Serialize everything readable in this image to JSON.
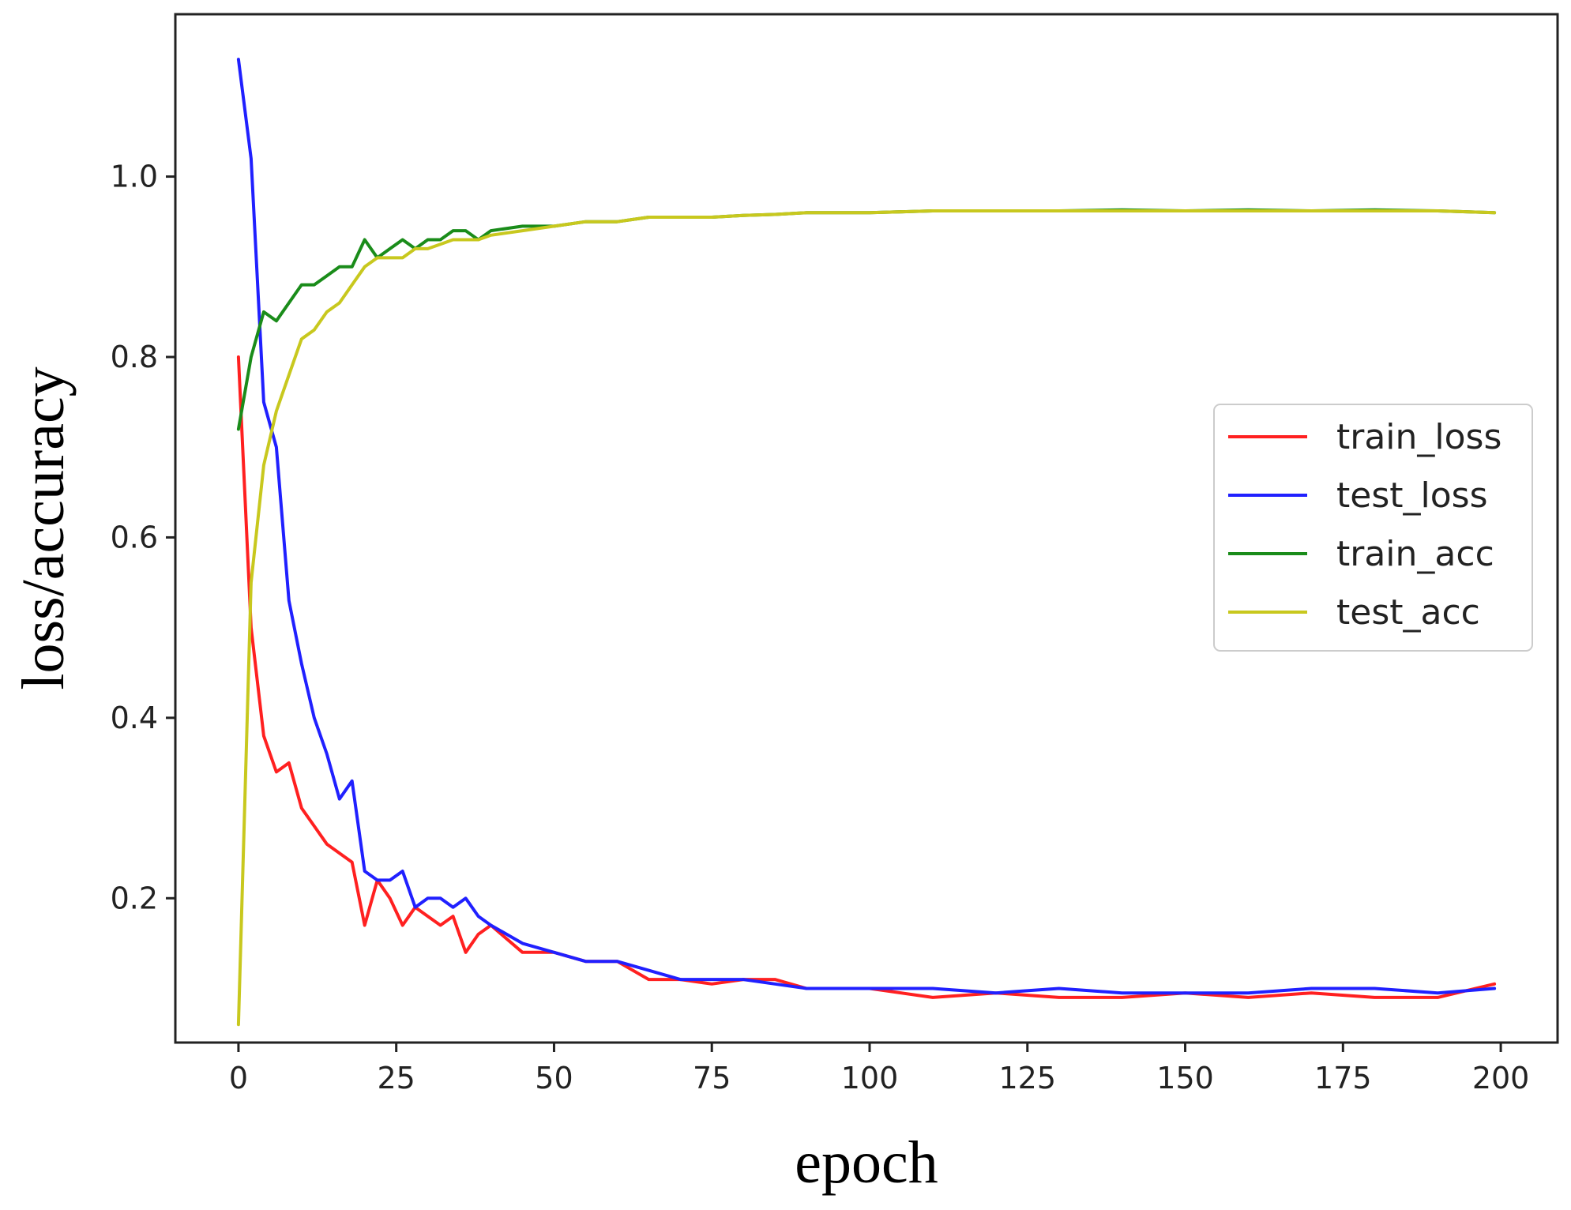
{
  "chart_data": {
    "type": "line",
    "title": "",
    "xlabel": "epoch",
    "ylabel": "loss/accuracy",
    "xlim": [
      -10,
      209
    ],
    "ylim": [
      0.04,
      1.18
    ],
    "x_ticks": [
      0,
      25,
      50,
      75,
      100,
      125,
      150,
      175,
      200
    ],
    "y_ticks": [
      0.2,
      0.4,
      0.6,
      0.8,
      1.0
    ],
    "y_tick_labels": [
      "0.2",
      "0.4",
      "0.6",
      "0.8",
      "1.0"
    ],
    "grid": false,
    "legend_position": "center-right",
    "x": [
      0,
      2,
      4,
      6,
      8,
      10,
      12,
      14,
      16,
      18,
      20,
      22,
      24,
      26,
      28,
      30,
      32,
      34,
      36,
      38,
      40,
      45,
      50,
      55,
      60,
      65,
      70,
      75,
      80,
      85,
      90,
      95,
      100,
      110,
      120,
      130,
      140,
      150,
      160,
      170,
      180,
      190,
      199
    ],
    "series": [
      {
        "name": "train_loss",
        "color": "#ff2020",
        "values": [
          0.8,
          0.5,
          0.38,
          0.34,
          0.35,
          0.3,
          0.28,
          0.26,
          0.25,
          0.24,
          0.17,
          0.22,
          0.2,
          0.17,
          0.19,
          0.18,
          0.17,
          0.18,
          0.14,
          0.16,
          0.17,
          0.14,
          0.14,
          0.13,
          0.13,
          0.11,
          0.11,
          0.105,
          0.11,
          0.11,
          0.1,
          0.1,
          0.1,
          0.09,
          0.095,
          0.09,
          0.09,
          0.095,
          0.09,
          0.095,
          0.09,
          0.09,
          0.105
        ]
      },
      {
        "name": "test_loss",
        "color": "#2020ff",
        "values": [
          1.13,
          1.02,
          0.75,
          0.7,
          0.53,
          0.46,
          0.4,
          0.36,
          0.31,
          0.33,
          0.23,
          0.22,
          0.22,
          0.23,
          0.19,
          0.2,
          0.2,
          0.19,
          0.2,
          0.18,
          0.17,
          0.15,
          0.14,
          0.13,
          0.13,
          0.12,
          0.11,
          0.11,
          0.11,
          0.105,
          0.1,
          0.1,
          0.1,
          0.1,
          0.095,
          0.1,
          0.095,
          0.095,
          0.095,
          0.1,
          0.1,
          0.095,
          0.1
        ]
      },
      {
        "name": "train_acc",
        "color": "#1a8c1a",
        "values": [
          0.72,
          0.8,
          0.85,
          0.84,
          0.86,
          0.88,
          0.88,
          0.89,
          0.9,
          0.9,
          0.93,
          0.91,
          0.92,
          0.93,
          0.92,
          0.93,
          0.93,
          0.94,
          0.94,
          0.93,
          0.94,
          0.945,
          0.945,
          0.95,
          0.95,
          0.955,
          0.955,
          0.955,
          0.957,
          0.958,
          0.96,
          0.96,
          0.96,
          0.962,
          0.962,
          0.962,
          0.963,
          0.962,
          0.963,
          0.962,
          0.963,
          0.962,
          0.96
        ]
      },
      {
        "name": "test_acc",
        "color": "#c8c81e",
        "values": [
          0.06,
          0.55,
          0.68,
          0.74,
          0.78,
          0.82,
          0.83,
          0.85,
          0.86,
          0.88,
          0.9,
          0.91,
          0.91,
          0.91,
          0.92,
          0.92,
          0.925,
          0.93,
          0.93,
          0.93,
          0.935,
          0.94,
          0.945,
          0.95,
          0.95,
          0.955,
          0.955,
          0.955,
          0.957,
          0.958,
          0.96,
          0.96,
          0.96,
          0.962,
          0.962,
          0.962,
          0.962,
          0.962,
          0.962,
          0.962,
          0.962,
          0.962,
          0.96
        ]
      }
    ]
  }
}
